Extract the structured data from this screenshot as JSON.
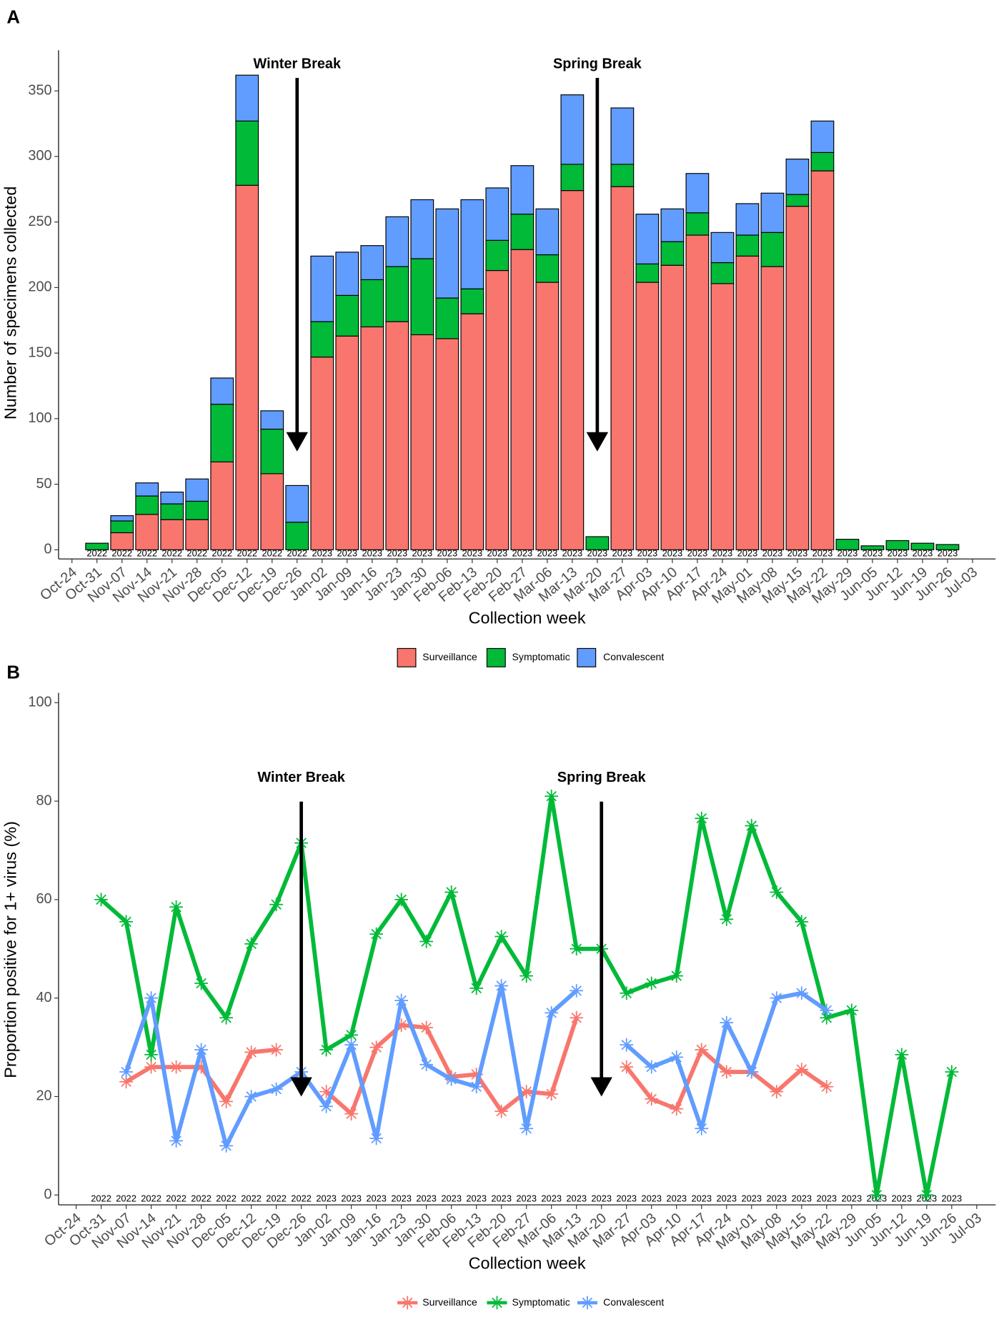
{
  "chart_data": [
    {
      "type": "bar",
      "stacked": true,
      "panel_label": "A",
      "x_label": "Collection week",
      "y_label": "Number of specimens collected",
      "categories": [
        "Oct-24",
        "Oct-31",
        "Nov-07",
        "Nov-14",
        "Nov-21",
        "Nov-28",
        "Dec-05",
        "Dec-12",
        "Dec-19",
        "Dec-26",
        "Jan-02",
        "Jan-09",
        "Jan-16",
        "Jan-23",
        "Jan-30",
        "Feb-06",
        "Feb-13",
        "Feb-20",
        "Feb-27",
        "Mar-06",
        "Mar-13",
        "Mar-20",
        "Mar-27",
        "Apr-03",
        "Apr-10",
        "Apr-17",
        "Apr-24",
        "May-01",
        "May-08",
        "May-15",
        "May-22",
        "May-29",
        "Jun-05",
        "Jun-12",
        "Jun-19",
        "Jun-26",
        "Jul-03"
      ],
      "year_labels": [
        null,
        "2022",
        "2022",
        "2022",
        "2022",
        "2022",
        "2022",
        "2022",
        "2022",
        "2022",
        "2023",
        "2023",
        "2023",
        "2023",
        "2023",
        "2023",
        "2023",
        "2023",
        "2023",
        "2023",
        "2023",
        "2023",
        "2023",
        "2023",
        "2023",
        "2023",
        "2023",
        "2023",
        "2023",
        "2023",
        "2023",
        "2023",
        "2023",
        "2023",
        "2023",
        "2023",
        null
      ],
      "series": [
        {
          "name": "Surveillance",
          "color": "#F8766D",
          "values": [
            null,
            0,
            13,
            27,
            23,
            23,
            67,
            278,
            58,
            0,
            147,
            163,
            170,
            174,
            164,
            161,
            180,
            213,
            229,
            204,
            274,
            0,
            277,
            204,
            217,
            240,
            203,
            224,
            216,
            262,
            289,
            0,
            0,
            0,
            0,
            0,
            null
          ]
        },
        {
          "name": "Symptomatic",
          "color": "#00BA38",
          "values": [
            null,
            5,
            9,
            14,
            12,
            14,
            44,
            49,
            34,
            21,
            27,
            31,
            36,
            42,
            58,
            31,
            19,
            23,
            27,
            21,
            20,
            10,
            17,
            14,
            18,
            17,
            16,
            16,
            26,
            9,
            14,
            8,
            3,
            7,
            5,
            4,
            null
          ]
        },
        {
          "name": "Convalescent",
          "color": "#619CFF",
          "values": [
            null,
            0,
            4,
            10,
            9,
            17,
            20,
            35,
            14,
            28,
            50,
            33,
            26,
            38,
            45,
            68,
            68,
            40,
            37,
            35,
            53,
            0,
            43,
            38,
            25,
            30,
            23,
            24,
            30,
            27,
            24,
            0,
            0,
            0,
            0,
            0,
            null
          ]
        }
      ],
      "ylim": [
        -7,
        381
      ],
      "yticks": [
        0,
        50,
        100,
        150,
        200,
        250,
        300,
        350
      ],
      "annotations": [
        {
          "text": "Winter Break",
          "x": "Dec-26",
          "y": 75
        },
        {
          "text": "Spring Break",
          "x": "Mar-20",
          "y": 75
        }
      ],
      "legend": "bottom"
    },
    {
      "type": "line",
      "panel_label": "B",
      "x_label": "Collection week",
      "y_label": "Proportion positive for 1+ virus (%)",
      "categories": [
        "Oct-24",
        "Oct-31",
        "Nov-07",
        "Nov-14",
        "Nov-21",
        "Nov-28",
        "Dec-05",
        "Dec-12",
        "Dec-19",
        "Dec-26",
        "Jan-02",
        "Jan-09",
        "Jan-16",
        "Jan-23",
        "Jan-30",
        "Feb-06",
        "Feb-13",
        "Feb-20",
        "Feb-27",
        "Mar-06",
        "Mar-13",
        "Mar-20",
        "Mar-27",
        "Apr-03",
        "Apr-10",
        "Apr-17",
        "Apr-24",
        "May-01",
        "May-08",
        "May-15",
        "May-22",
        "May-29",
        "Jun-05",
        "Jun-12",
        "Jun-19",
        "Jun-26",
        "Jul-03"
      ],
      "year_labels": [
        null,
        "2022",
        "2022",
        "2022",
        "2022",
        "2022",
        "2022",
        "2022",
        "2022",
        "2022",
        "2023",
        "2023",
        "2023",
        "2023",
        "2023",
        "2023",
        "2023",
        "2023",
        "2023",
        "2023",
        "2023",
        "2023",
        "2023",
        "2023",
        "2023",
        "2023",
        "2023",
        "2023",
        "2023",
        "2023",
        "2023",
        "2023",
        "2023",
        "2023",
        "2023",
        "2023",
        null
      ],
      "series": [
        {
          "name": "Surveillance",
          "color": "#F8766D",
          "values": [
            null,
            null,
            23,
            26,
            26,
            26,
            19,
            29,
            29.5,
            null,
            21,
            16.5,
            30,
            34.5,
            34,
            24,
            24.5,
            17,
            21,
            20.5,
            36,
            null,
            26,
            19.5,
            17.5,
            29.5,
            25,
            25,
            21,
            25.5,
            22,
            null,
            null,
            null,
            null,
            null,
            null
          ]
        },
        {
          "name": "Symptomatic",
          "color": "#00BA38",
          "values": [
            null,
            60,
            55.5,
            28.5,
            58.5,
            43,
            36,
            51,
            59,
            71.5,
            29.5,
            32.5,
            53,
            60,
            51.5,
            61.5,
            42,
            52.5,
            44.5,
            81,
            50,
            50,
            41,
            43,
            44.5,
            76.5,
            56,
            75,
            61.5,
            55.5,
            36,
            37.5,
            0,
            28.5,
            0,
            25,
            null
          ]
        },
        {
          "name": "Convalescent",
          "color": "#619CFF",
          "values": [
            null,
            null,
            25,
            40,
            11,
            29.5,
            10,
            20,
            21.5,
            25,
            18,
            30.5,
            11.5,
            39.5,
            26.5,
            23.5,
            22,
            42.5,
            13.5,
            37,
            41.5,
            null,
            30.5,
            26,
            28,
            13.5,
            35,
            25,
            40,
            41,
            37.5,
            null,
            null,
            null,
            null,
            null,
            null
          ]
        }
      ],
      "ylim": [
        -2,
        102
      ],
      "yticks": [
        0,
        20,
        40,
        60,
        80,
        100
      ],
      "annotations": [
        {
          "text": "Winter Break",
          "x": "Dec-26",
          "y": 20
        },
        {
          "text": "Spring Break",
          "x": "Mar-20",
          "y": 20
        }
      ],
      "legend": "bottom"
    }
  ]
}
